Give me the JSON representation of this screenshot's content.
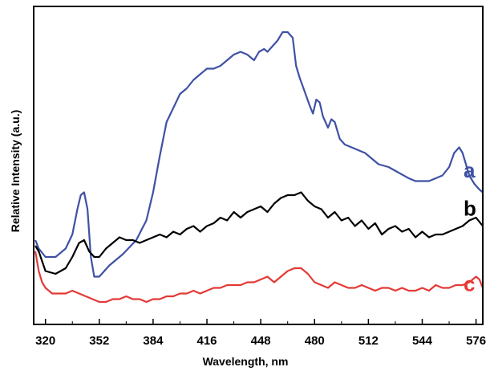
{
  "chart_data": {
    "type": "line",
    "title": "",
    "xlabel": "Wavelength, nm",
    "ylabel": "Relative Intensity (a.u.)",
    "xlim": [
      313,
      580
    ],
    "ylim": [
      0,
      1
    ],
    "xticks": [
      320,
      352,
      384,
      416,
      448,
      480,
      512,
      544,
      576
    ],
    "xtick_labels": [
      "320",
      "352",
      "384",
      "416",
      "448",
      "480",
      "512",
      "544",
      "576"
    ],
    "yticks_shown": false,
    "grid": false,
    "legend": "inline-right",
    "series": [
      {
        "name": "a",
        "color": "#3f51a5",
        "x": [
          314,
          316,
          320,
          326,
          332,
          336,
          339,
          341,
          343,
          345,
          347,
          349,
          352,
          358,
          366,
          374,
          380,
          384,
          388,
          392,
          396,
          400,
          404,
          408,
          412,
          416,
          420,
          424,
          428,
          432,
          436,
          440,
          444,
          447,
          450,
          452,
          455,
          458,
          461,
          464,
          467,
          469,
          471,
          474,
          477,
          479,
          481,
          483,
          485,
          488,
          490,
          492,
          495,
          498,
          502,
          506,
          510,
          514,
          518,
          524,
          530,
          536,
          540,
          544,
          548,
          552,
          556,
          560,
          563,
          566,
          568,
          570,
          572,
          575,
          578,
          580
        ],
        "y": [
          0.26,
          0.23,
          0.2,
          0.2,
          0.23,
          0.28,
          0.37,
          0.42,
          0.43,
          0.37,
          0.2,
          0.13,
          0.13,
          0.17,
          0.21,
          0.26,
          0.33,
          0.43,
          0.56,
          0.68,
          0.73,
          0.78,
          0.8,
          0.83,
          0.85,
          0.87,
          0.87,
          0.88,
          0.9,
          0.92,
          0.93,
          0.92,
          0.9,
          0.93,
          0.94,
          0.93,
          0.95,
          0.97,
          1.0,
          1.0,
          0.98,
          0.88,
          0.84,
          0.79,
          0.74,
          0.71,
          0.76,
          0.75,
          0.7,
          0.66,
          0.69,
          0.68,
          0.62,
          0.6,
          0.59,
          0.58,
          0.57,
          0.55,
          0.53,
          0.52,
          0.5,
          0.48,
          0.47,
          0.47,
          0.47,
          0.48,
          0.49,
          0.52,
          0.57,
          0.59,
          0.57,
          0.53,
          0.49,
          0.46,
          0.44,
          0.43
        ]
      },
      {
        "name": "b",
        "color": "#000000",
        "x": [
          314,
          316,
          320,
          326,
          332,
          336,
          340,
          343,
          346,
          349,
          352,
          356,
          360,
          364,
          368,
          372,
          376,
          380,
          384,
          388,
          392,
          396,
          400,
          404,
          408,
          412,
          416,
          420,
          424,
          428,
          432,
          436,
          440,
          444,
          448,
          452,
          456,
          460,
          464,
          468,
          472,
          476,
          480,
          484,
          488,
          492,
          496,
          500,
          504,
          508,
          512,
          516,
          520,
          524,
          528,
          532,
          536,
          540,
          544,
          548,
          552,
          556,
          560,
          564,
          568,
          572,
          576,
          580
        ],
        "y": [
          0.24,
          0.22,
          0.15,
          0.14,
          0.16,
          0.2,
          0.25,
          0.26,
          0.22,
          0.2,
          0.2,
          0.23,
          0.25,
          0.27,
          0.26,
          0.26,
          0.25,
          0.26,
          0.27,
          0.28,
          0.27,
          0.29,
          0.28,
          0.3,
          0.31,
          0.29,
          0.31,
          0.32,
          0.34,
          0.33,
          0.36,
          0.34,
          0.36,
          0.37,
          0.38,
          0.36,
          0.39,
          0.41,
          0.42,
          0.42,
          0.43,
          0.4,
          0.38,
          0.37,
          0.34,
          0.36,
          0.33,
          0.34,
          0.31,
          0.33,
          0.3,
          0.32,
          0.28,
          0.3,
          0.31,
          0.29,
          0.3,
          0.27,
          0.29,
          0.27,
          0.28,
          0.28,
          0.29,
          0.3,
          0.31,
          0.33,
          0.34,
          0.31
        ]
      },
      {
        "name": "c",
        "color": "#e53935",
        "x": [
          314,
          316,
          318,
          320,
          324,
          328,
          332,
          336,
          340,
          344,
          348,
          352,
          356,
          360,
          364,
          368,
          372,
          376,
          380,
          384,
          388,
          392,
          396,
          400,
          404,
          408,
          412,
          416,
          420,
          424,
          428,
          432,
          436,
          440,
          444,
          448,
          452,
          456,
          460,
          464,
          468,
          472,
          476,
          480,
          484,
          488,
          492,
          496,
          500,
          504,
          508,
          512,
          516,
          520,
          524,
          528,
          532,
          536,
          540,
          544,
          548,
          552,
          556,
          560,
          564,
          568,
          572,
          576,
          578,
          580
        ],
        "y": [
          0.22,
          0.15,
          0.11,
          0.09,
          0.07,
          0.07,
          0.07,
          0.08,
          0.07,
          0.06,
          0.05,
          0.04,
          0.04,
          0.05,
          0.05,
          0.06,
          0.05,
          0.05,
          0.04,
          0.05,
          0.05,
          0.06,
          0.06,
          0.07,
          0.07,
          0.08,
          0.07,
          0.08,
          0.09,
          0.09,
          0.1,
          0.1,
          0.1,
          0.11,
          0.11,
          0.12,
          0.13,
          0.11,
          0.13,
          0.15,
          0.16,
          0.16,
          0.14,
          0.11,
          0.1,
          0.09,
          0.11,
          0.1,
          0.09,
          0.09,
          0.1,
          0.09,
          0.08,
          0.09,
          0.09,
          0.08,
          0.09,
          0.08,
          0.08,
          0.09,
          0.08,
          0.1,
          0.09,
          0.09,
          0.1,
          0.1,
          0.11,
          0.13,
          0.12,
          0.09
        ]
      }
    ]
  }
}
